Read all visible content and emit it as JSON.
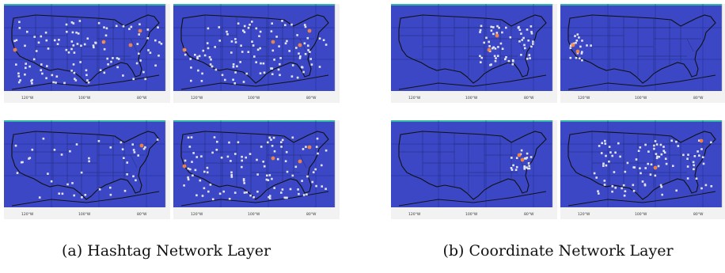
{
  "captions": {
    "a": "(a) Hashtag Network Layer",
    "b": "(b) Coordinate Network Layer"
  },
  "axis": {
    "ticks": [
      "120°W",
      "100°W",
      "80°W"
    ]
  },
  "colors": {
    "ocean": "#3b47c4",
    "land_line": "#111111",
    "point": "#e4e4ee",
    "hotspot": "#ff8a3c",
    "frame_top": "#2fb7a3"
  },
  "maps": [
    {
      "panel": "a",
      "position": "top-left",
      "pattern": "dense-us"
    },
    {
      "panel": "a",
      "position": "top-right",
      "pattern": "dense-us"
    },
    {
      "panel": "a",
      "position": "bottom-left",
      "pattern": "sparse-us"
    },
    {
      "panel": "a",
      "position": "bottom-right",
      "pattern": "dense-us"
    },
    {
      "panel": "b",
      "position": "top-left",
      "pattern": "midwest-cluster"
    },
    {
      "panel": "b",
      "position": "top-right",
      "pattern": "california"
    },
    {
      "panel": "b",
      "position": "bottom-left",
      "pattern": "mid-atlantic"
    },
    {
      "panel": "b",
      "position": "bottom-right",
      "pattern": "southeast"
    }
  ]
}
